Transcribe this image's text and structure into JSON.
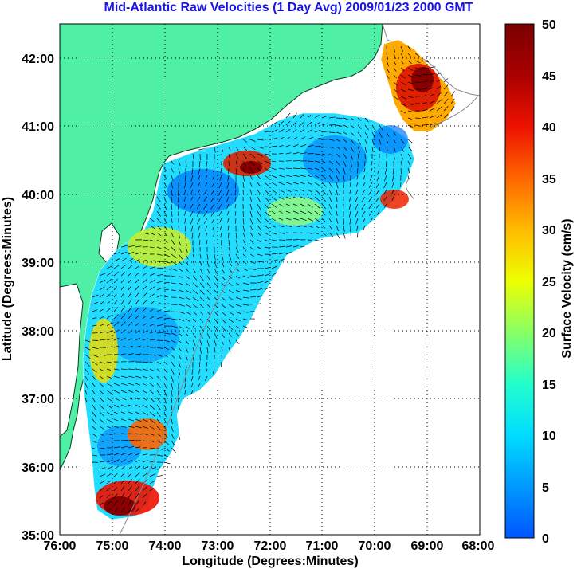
{
  "title": "Mid-Atlantic Raw Velocities (1 Day Avg) 2009/01/23 2000 GMT",
  "title_color": "#1a14e6",
  "land_color": "#4ff0a6",
  "x_axis": {
    "label": "Longitude (Degrees:Minutes)",
    "ticks": [
      "76:00",
      "75:00",
      "74:00",
      "73:00",
      "72:00",
      "71:00",
      "70:00",
      "69:00",
      "68:00"
    ],
    "range": [
      -76,
      -68
    ]
  },
  "y_axis": {
    "label": "Latitude (Degrees:Minutes)",
    "ticks": [
      "35:00",
      "36:00",
      "37:00",
      "38:00",
      "39:00",
      "40:00",
      "41:00",
      "42:00"
    ],
    "range": [
      35,
      42.5
    ]
  },
  "colorbar": {
    "label": "Surface Velocity (cm/s)",
    "ticks": [
      "0",
      "5",
      "10",
      "15",
      "20",
      "25",
      "30",
      "35",
      "40",
      "45",
      "50"
    ],
    "range": [
      0,
      50
    ],
    "colors": [
      "#0055ff",
      "#0099ff",
      "#00ddff",
      "#22ffcc",
      "#88ff66",
      "#eeff00",
      "#ffbb00",
      "#ff6600",
      "#ee1100",
      "#aa0000",
      "#7a0000"
    ]
  },
  "grid": "dotted"
}
